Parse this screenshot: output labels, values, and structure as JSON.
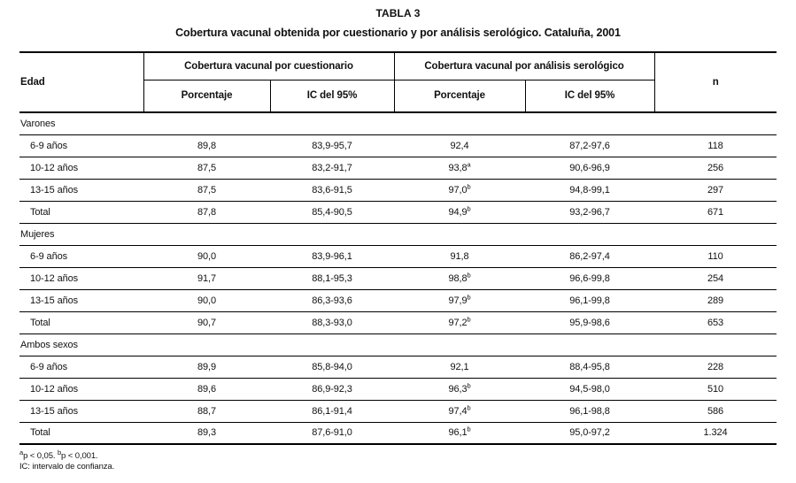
{
  "page": {
    "title": "TABLA 3",
    "subtitle": "Cobertura vacunal obtenida por cuestionario y por análisis serológico. Cataluña, 2001"
  },
  "table": {
    "header": {
      "edad": "Edad",
      "group_questionnaire": "Cobertura vacunal por cuestionario",
      "group_serology": "Cobertura vacunal por análisis serológico",
      "pct_q": "Porcentaje",
      "ic_q": "IC del 95%",
      "pct_s": "Porcentaje",
      "ic_s": "IC del 95%",
      "n": "n"
    },
    "sections": [
      {
        "label": "Varones",
        "rows": [
          {
            "label": "6-9 años",
            "pct_q": "89,8",
            "ic_q": "83,9-95,7",
            "pct_s": "92,4",
            "pct_s_sup": "",
            "ic_s": "87,2-97,6",
            "n": "118"
          },
          {
            "label": "10-12 años",
            "pct_q": "87,5",
            "ic_q": "83,2-91,7",
            "pct_s": "93,8",
            "pct_s_sup": "a",
            "ic_s": "90,6-96,9",
            "n": "256"
          },
          {
            "label": "13-15 años",
            "pct_q": "87,5",
            "ic_q": "83,6-91,5",
            "pct_s": "97,0",
            "pct_s_sup": "b",
            "ic_s": "94,8-99,1",
            "n": "297"
          },
          {
            "label": "Total",
            "pct_q": "87,8",
            "ic_q": "85,4-90,5",
            "pct_s": "94,9",
            "pct_s_sup": "b",
            "ic_s": "93,2-96,7",
            "n": "671"
          }
        ]
      },
      {
        "label": "Mujeres",
        "rows": [
          {
            "label": "6-9 años",
            "pct_q": "90,0",
            "ic_q": "83,9-96,1",
            "pct_s": "91,8",
            "pct_s_sup": "",
            "ic_s": "86,2-97,4",
            "n": "110"
          },
          {
            "label": "10-12 años",
            "pct_q": "91,7",
            "ic_q": "88,1-95,3",
            "pct_s": "98,8",
            "pct_s_sup": "b",
            "ic_s": "96,6-99,8",
            "n": "254"
          },
          {
            "label": "13-15 años",
            "pct_q": "90,0",
            "ic_q": "86,3-93,6",
            "pct_s": "97,9",
            "pct_s_sup": "b",
            "ic_s": "96,1-99,8",
            "n": "289"
          },
          {
            "label": "Total",
            "pct_q": "90,7",
            "ic_q": "88,3-93,0",
            "pct_s": "97,2",
            "pct_s_sup": "b",
            "ic_s": "95,9-98,6",
            "n": "653"
          }
        ]
      },
      {
        "label": "Ambos sexos",
        "rows": [
          {
            "label": "6-9 años",
            "pct_q": "89,9",
            "ic_q": "85,8-94,0",
            "pct_s": "92,1",
            "pct_s_sup": "",
            "ic_s": "88,4-95,8",
            "n": "228"
          },
          {
            "label": "10-12 años",
            "pct_q": "89,6",
            "ic_q": "86,9-92,3",
            "pct_s": "96,3",
            "pct_s_sup": "b",
            "ic_s": "94,5-98,0",
            "n": "510"
          },
          {
            "label": "13-15 años",
            "pct_q": "88,7",
            "ic_q": "86,1-91,4",
            "pct_s": "97,4",
            "pct_s_sup": "b",
            "ic_s": "96,1-98,8",
            "n": "586"
          },
          {
            "label": "Total",
            "pct_q": "89,3",
            "ic_q": "87,6-91,0",
            "pct_s": "96,1",
            "pct_s_sup": "b",
            "ic_s": "95,0-97,2",
            "n": "1.324"
          }
        ]
      }
    ]
  },
  "footnotes": {
    "significance": {
      "sup1": "a",
      "text1": "p < 0,05. ",
      "sup2": "b",
      "text2": "p < 0,001."
    },
    "abbreviation": "IC: intervalo de confianza."
  },
  "colors": {
    "text": "#111111",
    "border": "#000000",
    "background": "#ffffff"
  }
}
